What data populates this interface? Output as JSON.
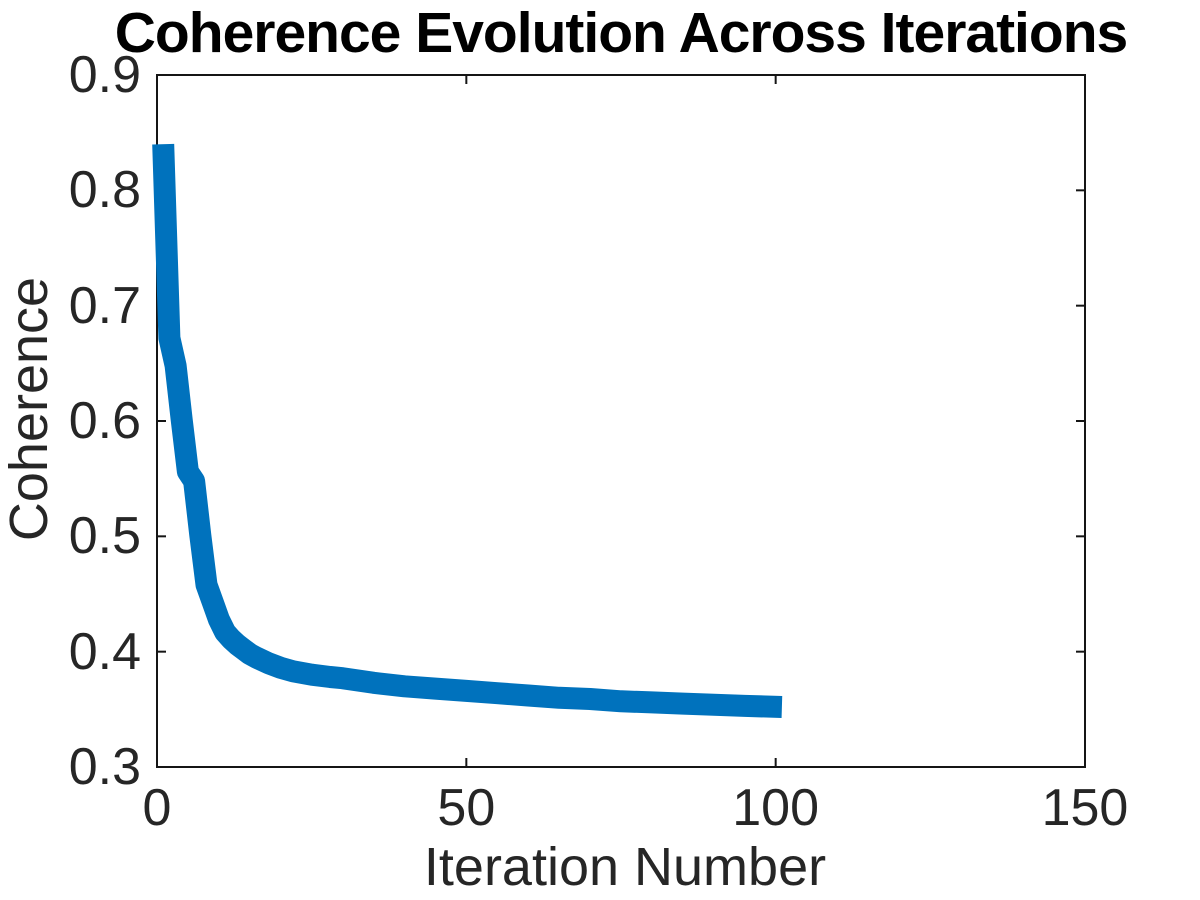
{
  "chart_data": {
    "type": "line",
    "title": "Coherence Evolution Across Iterations",
    "xlabel": "Iteration Number",
    "ylabel": "Coherence",
    "xlim": [
      0,
      150
    ],
    "ylim": [
      0.3,
      0.9
    ],
    "xticks": [
      0,
      50,
      100,
      150
    ],
    "yticks": [
      0.3,
      0.4,
      0.5,
      0.6,
      0.7,
      0.8,
      0.9
    ],
    "xtick_labels": [
      "0",
      "50",
      "100",
      "150"
    ],
    "ytick_labels_top_to_bottom": [
      "0.9",
      "0.8",
      "0.7",
      "0.6",
      "0.5",
      "0.4",
      "0.3"
    ],
    "grid": false,
    "legend": "none",
    "box": true,
    "tick_direction": "in",
    "line_color": "#0072BD",
    "axis_color": "#151515",
    "text_color": "#262626",
    "series": [
      {
        "name": "Coherence",
        "x": [
          1,
          2,
          3,
          4,
          5,
          6,
          7,
          8,
          9,
          10,
          11,
          12,
          13,
          14,
          15,
          16,
          18,
          20,
          22,
          25,
          28,
          30,
          35,
          40,
          45,
          50,
          55,
          60,
          65,
          70,
          75,
          80,
          85,
          90,
          95,
          101
        ],
        "y": [
          0.84,
          0.672,
          0.648,
          0.601,
          0.556,
          0.548,
          0.501,
          0.458,
          0.443,
          0.428,
          0.417,
          0.411,
          0.406,
          0.402,
          0.398,
          0.395,
          0.39,
          0.386,
          0.383,
          0.38,
          0.378,
          0.377,
          0.373,
          0.37,
          0.368,
          0.366,
          0.364,
          0.362,
          0.36,
          0.359,
          0.357,
          0.356,
          0.355,
          0.354,
          0.353,
          0.352
        ]
      }
    ]
  }
}
